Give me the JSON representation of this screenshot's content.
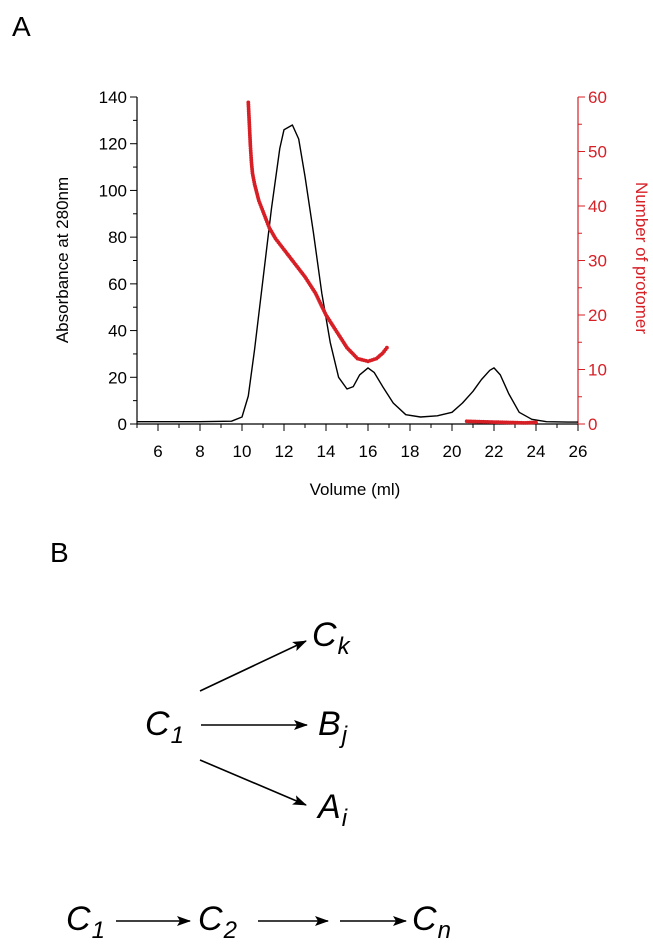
{
  "panels": {
    "a_label": "A",
    "b_label": "B"
  },
  "chart_data": {
    "type": "line",
    "title": "",
    "xlabel": "Volume (ml)",
    "ylabel_left": "Absorbance at 280nm",
    "ylabel_right": "Number of protomer",
    "xlim": [
      5,
      26
    ],
    "ylim_left": [
      0,
      140
    ],
    "ylim_right": [
      0,
      60
    ],
    "x_ticks": [
      6,
      8,
      10,
      12,
      14,
      16,
      18,
      20,
      22,
      24,
      26
    ],
    "y_left_ticks": [
      0,
      20,
      40,
      60,
      80,
      100,
      120,
      140
    ],
    "y_right_ticks": [
      0,
      10,
      20,
      30,
      40,
      50,
      60
    ],
    "colors": {
      "absorbance": "#000000",
      "protomer": "#d71f26",
      "right_axis": "#d71f26"
    },
    "series": [
      {
        "axis": "left",
        "style": "line",
        "x": [
          5,
          8,
          9.5,
          10,
          10.3,
          10.6,
          11.0,
          11.4,
          11.8,
          12.0,
          12.2,
          12.4,
          12.7,
          13.0,
          13.4,
          13.8,
          14.2,
          14.6,
          15.0,
          15.3,
          15.6,
          16.0,
          16.3,
          16.7,
          17.2,
          17.8,
          18.5,
          19.3,
          20.0,
          20.5,
          21.0,
          21.4,
          21.8,
          22.0,
          22.3,
          22.7,
          23.2,
          23.8,
          24.5,
          25.5,
          26
        ],
        "values": [
          1,
          1,
          1.2,
          3,
          12,
          32,
          62,
          92,
          118,
          126,
          127,
          128,
          122,
          106,
          82,
          56,
          35,
          20,
          15,
          16,
          21,
          24,
          22,
          16,
          9,
          4,
          3,
          3.5,
          5,
          9,
          14,
          19,
          23,
          24,
          21,
          13,
          5,
          2,
          1,
          0.8,
          0.8
        ]
      },
      {
        "axis": "right",
        "style": "dots",
        "segments": [
          {
            "x": [
              10.3,
              10.35,
              10.4,
              10.45,
              10.5,
              10.6,
              10.8,
              11.0,
              11.3,
              11.6,
              12.0,
              12.5,
              13.0,
              13.5,
              14.0,
              14.5,
              15.0,
              15.5,
              16.0,
              16.4,
              16.7,
              16.9
            ],
            "values": [
              59,
              55,
              51,
              48,
              46,
              44,
              41,
              39,
              36,
              34,
              32,
              29.5,
              27,
              24,
              20,
              17,
              14,
              12,
              11.5,
              12,
              13,
              14
            ]
          },
          {
            "x": [
              20.7,
              21.5,
              22.5,
              23.5,
              24.0
            ],
            "values": [
              0.5,
              0.4,
              0.3,
              0.2,
              0.3
            ]
          }
        ]
      }
    ]
  },
  "scheme": {
    "c1_sym": "C",
    "c1_sub": "1",
    "ck_sym": "C",
    "ck_sub": "k",
    "bj_sym": "B",
    "bj_sub": "j",
    "ai_sym": "A",
    "ai_sub": "i",
    "chain_c1_sym": "C",
    "chain_c1_sub": "1",
    "chain_c2_sym": "C",
    "chain_c2_sub": "2",
    "chain_cn_sym": "C",
    "chain_cn_sub": "n"
  }
}
